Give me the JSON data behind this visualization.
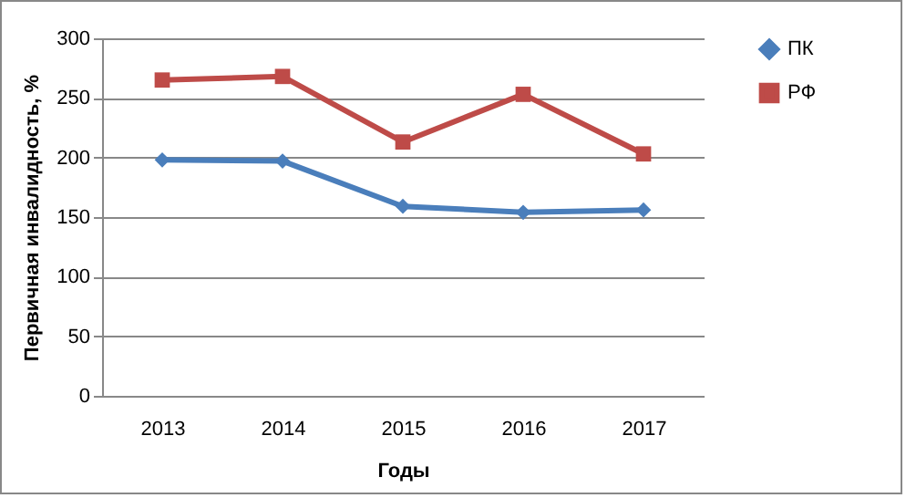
{
  "chart_data": {
    "type": "line",
    "xlabel": "Годы",
    "ylabel": "Первичная  инвалидность, %",
    "categories": [
      "2013",
      "2014",
      "2015",
      "2016",
      "2017"
    ],
    "series": [
      {
        "name": "ПК",
        "color": "#4a7ebb",
        "marker": "diamond",
        "values": [
          198,
          197,
          159,
          154,
          156
        ]
      },
      {
        "name": "РФ",
        "color": "#be4b48",
        "marker": "square",
        "values": [
          265,
          268,
          213,
          253,
          203
        ]
      }
    ],
    "ylim": [
      0,
      300
    ],
    "yticks": [
      0,
      50,
      100,
      150,
      200,
      250,
      300
    ],
    "grid": "y",
    "legend": "right"
  }
}
